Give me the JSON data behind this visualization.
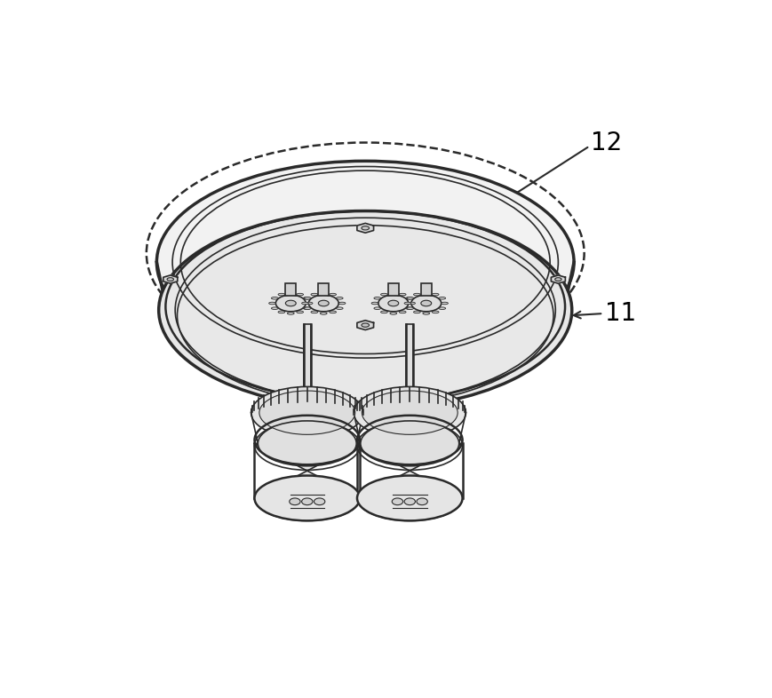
{
  "bg_color": "#ffffff",
  "line_color": "#2a2a2a",
  "label_color": "#000000",
  "fig_width": 8.7,
  "fig_height": 7.86,
  "dpi": 100,
  "label_12": "12",
  "label_11": "11",
  "note_fontsize": 20
}
